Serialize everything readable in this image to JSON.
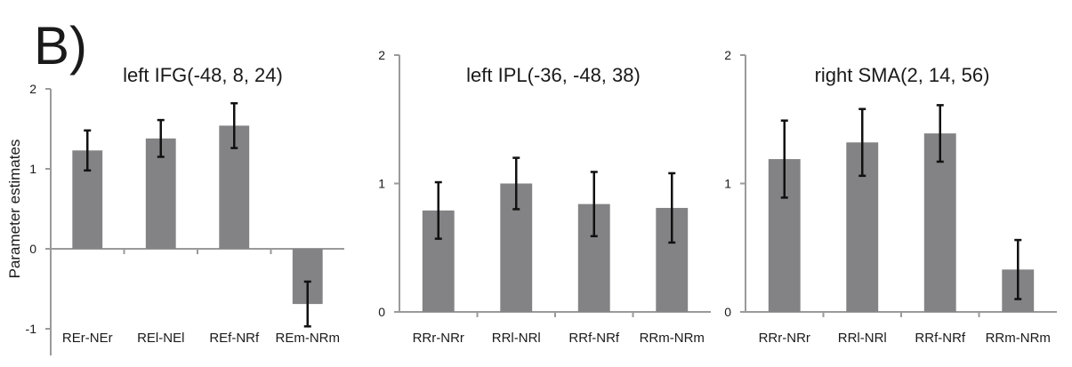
{
  "figure": {
    "panel_label": "B)",
    "ylabel": "Parameter estimates"
  },
  "colors": {
    "bar": "#838385",
    "axis": "#9a9a9a",
    "error": "#111111"
  },
  "chart_data": [
    {
      "type": "bar",
      "title": "left IFG(-48, 8, 24)",
      "ylabel": "Parameter estimates",
      "ylim": [
        -1,
        2
      ],
      "yticks": [
        -1,
        0,
        1,
        2
      ],
      "categories": [
        "REr-NEr",
        "REl-NEl",
        "REf-NRf",
        "REm-NRm"
      ],
      "values": [
        1.23,
        1.38,
        1.54,
        -0.69
      ],
      "errors": [
        0.25,
        0.23,
        0.28,
        0.28
      ],
      "grid": false,
      "legend": "none"
    },
    {
      "type": "bar",
      "title": "left IPL(-36, -48, 38)",
      "ylim": [
        0,
        2
      ],
      "yticks": [
        0,
        1,
        2
      ],
      "categories": [
        "RRr-NRr",
        "RRl-NRl",
        "RRf-NRf",
        "RRm-NRm"
      ],
      "values": [
        0.79,
        1.0,
        0.84,
        0.81
      ],
      "errors": [
        0.22,
        0.2,
        0.25,
        0.27
      ],
      "grid": false,
      "legend": "none"
    },
    {
      "type": "bar",
      "title": "right SMA(2, 14, 56)",
      "ylim": [
        0,
        2
      ],
      "yticks": [
        0,
        1,
        2
      ],
      "categories": [
        "RRr-NRr",
        "RRl-NRl",
        "RRf-NRf",
        "RRm-NRm"
      ],
      "values": [
        1.19,
        1.32,
        1.39,
        0.33
      ],
      "errors": [
        0.3,
        0.26,
        0.22,
        0.23
      ],
      "grid": false,
      "legend": "none"
    }
  ]
}
